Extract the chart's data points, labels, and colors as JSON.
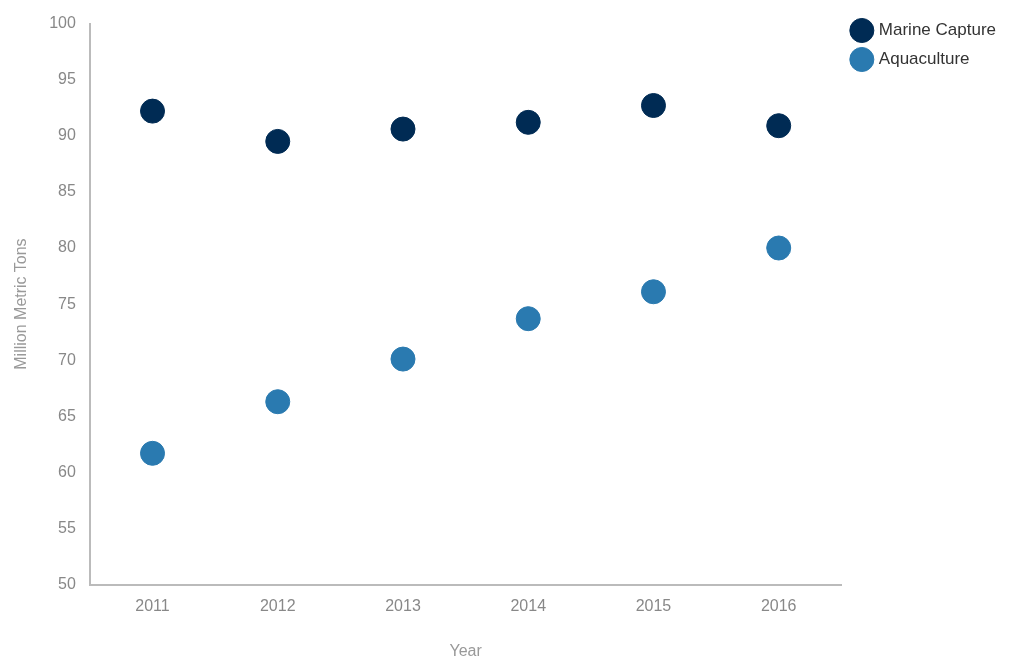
{
  "chart_data": {
    "type": "scatter",
    "xlabel": "Year",
    "ylabel": "Million Metric Tons",
    "categories": [
      "2011",
      "2012",
      "2013",
      "2014",
      "2015",
      "2016"
    ],
    "series": [
      {
        "name": "Marine Capture",
        "color": "#002b54",
        "values": [
          92.2,
          89.5,
          90.6,
          91.2,
          92.7,
          90.9
        ]
      },
      {
        "name": "Aquaculture",
        "color": "#2a7ab0",
        "values": [
          61.7,
          66.3,
          70.1,
          73.7,
          76.1,
          80.0
        ]
      }
    ],
    "ylim": [
      50,
      100
    ],
    "yticks": [
      50,
      55,
      60,
      65,
      70,
      75,
      80,
      85,
      90,
      95,
      100
    ],
    "grid": false,
    "legend": "top right",
    "marker": "circle"
  }
}
